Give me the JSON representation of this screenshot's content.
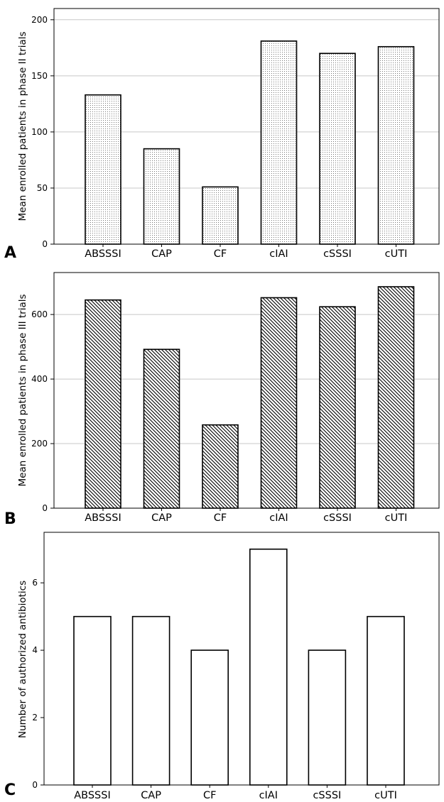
{
  "figure": {
    "panels": [
      {
        "panel_label": "A"
      },
      {
        "panel_label": "B"
      },
      {
        "panel_label": "C"
      }
    ]
  },
  "chart_data": [
    {
      "type": "bar",
      "title": "",
      "panel": "A",
      "categories": [
        "ABSSSI",
        "CAP",
        "CF",
        "cIAI",
        "cSSSI",
        "cUTI"
      ],
      "values": [
        133,
        85,
        51,
        181,
        170,
        176
      ],
      "ylabel": "Mean enrolled patients in phase II trials",
      "xlabel": "",
      "ylim": [
        0,
        210
      ],
      "yticks": [
        0,
        50,
        100,
        150,
        200
      ],
      "grid": true,
      "fill": "dotted"
    },
    {
      "type": "bar",
      "title": "",
      "panel": "B",
      "categories": [
        "ABSSSI",
        "CAP",
        "CF",
        "cIAI",
        "cSSSI",
        "cUTI"
      ],
      "values": [
        645,
        492,
        258,
        652,
        624,
        686
      ],
      "ylabel": "Mean enrolled patients in phase III trials",
      "xlabel": "",
      "ylim": [
        0,
        730
      ],
      "yticks": [
        0,
        200,
        400,
        600
      ],
      "grid": true,
      "fill": "diagonal-hatch"
    },
    {
      "type": "bar",
      "title": "",
      "panel": "C",
      "categories": [
        "ABSSSI",
        "CAP",
        "CF",
        "cIAI",
        "cSSSI",
        "cUTI"
      ],
      "values": [
        5,
        5,
        4,
        7,
        4,
        5
      ],
      "ylabel": "Number of authorized antibiotics",
      "xlabel": "",
      "ylim": [
        0,
        7.5
      ],
      "yticks": [
        0,
        2,
        4,
        6
      ],
      "grid": false,
      "fill": "none"
    }
  ]
}
